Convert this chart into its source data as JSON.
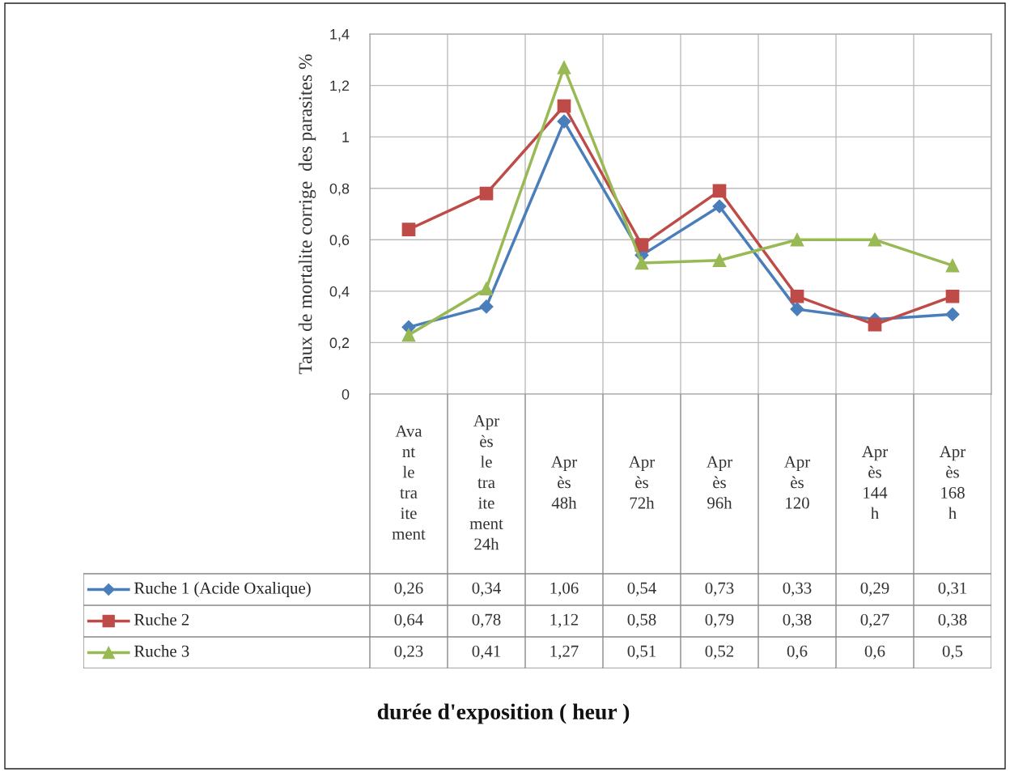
{
  "chart_data": {
    "type": "line",
    "annotations": [
      "durée d'exposition ( heur )"
    ],
    "ylabel": "Taux de mortalite corrige  des parasites %",
    "categories": [
      "Avant le traitement",
      "Après le traitement 24h",
      "Après 48h",
      "Après 72h",
      "Après 96h",
      "Après 120",
      "Après 144 h",
      "Après 168 h"
    ],
    "series": [
      {
        "name": "Ruche 1 (Acide Oxalique)",
        "color": "#4a7ebb",
        "marker": "diamond",
        "values": [
          0.26,
          0.34,
          1.06,
          0.54,
          0.73,
          0.33,
          0.29,
          0.31
        ],
        "value_labels": [
          "0,26",
          "0,34",
          "1,06",
          "0,54",
          "0,73",
          "0,33",
          "0,29",
          "0,31"
        ]
      },
      {
        "name": "Ruche 2",
        "color": "#be4b48",
        "marker": "square",
        "values": [
          0.64,
          0.78,
          1.12,
          0.58,
          0.79,
          0.38,
          0.27,
          0.38
        ],
        "value_labels": [
          "0,64",
          "0,78",
          "1,12",
          "0,58",
          "0,79",
          "0,38",
          "0,27",
          "0,38"
        ]
      },
      {
        "name": "Ruche 3",
        "color": "#98b954",
        "marker": "triangle",
        "values": [
          0.23,
          0.41,
          1.27,
          0.51,
          0.52,
          0.6,
          0.6,
          0.5
        ],
        "value_labels": [
          "0,23",
          "0,41",
          "1,27",
          "0,51",
          "0,52",
          "0,6",
          "0,6",
          "0,5"
        ]
      }
    ],
    "ylim": [
      0,
      1.4
    ],
    "yticks": [
      {
        "value": 0,
        "label": "0"
      },
      {
        "value": 0.2,
        "label": "0,2"
      },
      {
        "value": 0.4,
        "label": "0,4"
      },
      {
        "value": 0.6,
        "label": "0,6"
      },
      {
        "value": 0.8,
        "label": "0,8"
      },
      {
        "value": 1,
        "label": "1"
      },
      {
        "value": 1.2,
        "label": "1,2"
      },
      {
        "value": 1.4,
        "label": "1,4"
      }
    ],
    "grid": true,
    "line_style": "solid",
    "legend": "bottom"
  }
}
